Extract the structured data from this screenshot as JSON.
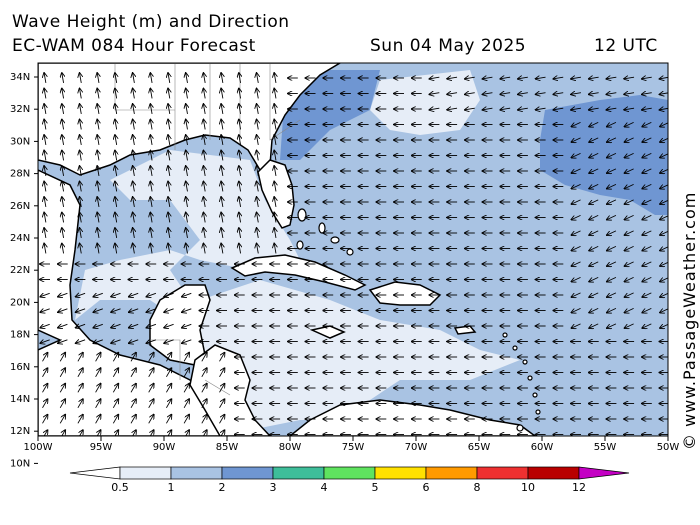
{
  "header": {
    "title": "Wave Height (m) and Direction",
    "model": "EC-WAM 084 Hour Forecast",
    "date": "Sun 04 May 2025",
    "time": "12 UTC"
  },
  "credit": "© www.PassageWeather.com",
  "axes": {
    "lat_labels": [
      "34N",
      "32N",
      "30N",
      "28N",
      "26N",
      "24N",
      "22N",
      "20N",
      "18N",
      "16N",
      "14N",
      "12N",
      "10N"
    ],
    "lon_labels": [
      "100W",
      "95W",
      "90W",
      "85W",
      "80W",
      "75W",
      "70W",
      "65W",
      "60W",
      "55W",
      "50W"
    ]
  },
  "colorbar": {
    "ticks": [
      "0.5",
      "1",
      "2",
      "3",
      "4",
      "5",
      "6",
      "8",
      "10",
      "12"
    ],
    "colors": [
      "#e6edf7",
      "#a9c3e3",
      "#6f96d2",
      "#3ebe9a",
      "#5fe35f",
      "#ffe100",
      "#ff9a00",
      "#ee3030",
      "#b90000",
      "#c400c4"
    ]
  },
  "palette": {
    "land": "#ffffff",
    "calm": "#e6edf7",
    "moderate": "#a9c3e3",
    "rough": "#6f96d2"
  }
}
